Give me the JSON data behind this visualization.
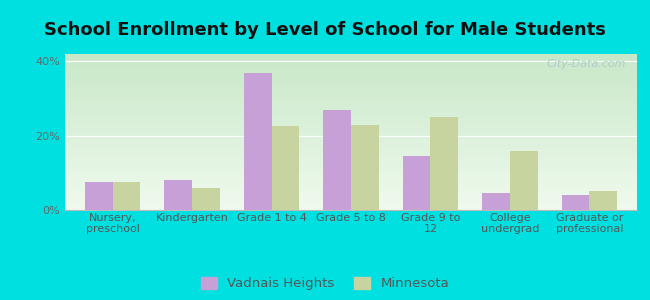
{
  "title": "School Enrollment by Level of School for Male Students",
  "categories": [
    "Nursery,\npreschool",
    "Kindergarten",
    "Grade 1 to 4",
    "Grade 5 to 8",
    "Grade 9 to\n12",
    "College\nundergrad",
    "Graduate or\nprofessional"
  ],
  "vadnais_heights": [
    7.5,
    8.0,
    37.0,
    27.0,
    14.5,
    4.5,
    4.0
  ],
  "minnesota": [
    7.5,
    6.0,
    22.5,
    23.0,
    25.0,
    16.0,
    5.0
  ],
  "vadnais_color": "#c8a0d8",
  "minnesota_color": "#c8d4a0",
  "background_outer": "#00e0e0",
  "background_inner_top": "#c8e8c8",
  "background_inner_bottom": "#f0faee",
  "ylim": [
    0,
    42
  ],
  "yticks": [
    0,
    20,
    40
  ],
  "ytick_labels": [
    "0%",
    "20%",
    "40%"
  ],
  "bar_width": 0.35,
  "legend_vadnais": "Vadnais Heights",
  "legend_minnesota": "Minnesota",
  "title_fontsize": 13,
  "tick_fontsize": 8,
  "legend_fontsize": 9.5
}
